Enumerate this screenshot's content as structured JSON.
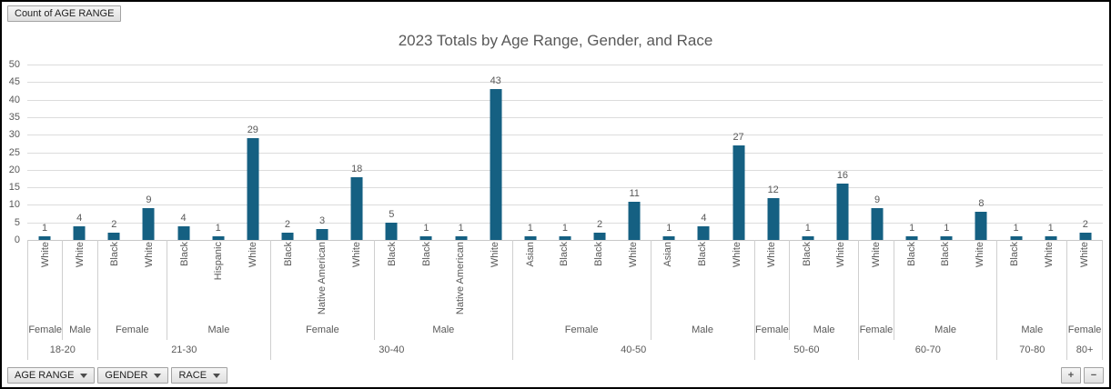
{
  "pivot": {
    "value_button_label": "Count of AGE RANGE",
    "axis_buttons": [
      {
        "label": "AGE RANGE"
      },
      {
        "label": "GENDER"
      },
      {
        "label": "RACE"
      }
    ],
    "expand_label": "+",
    "collapse_label": "−"
  },
  "chart_data": {
    "type": "bar",
    "title": "2023 Totals by Age Range, Gender, and Race",
    "ylabel": "",
    "xlabel": "",
    "ylim": [
      0,
      50
    ],
    "yticks": [
      0,
      5,
      10,
      15,
      20,
      25,
      30,
      35,
      40,
      45,
      50
    ],
    "grid": true,
    "legend": false,
    "bar_color": "#156082",
    "axis_hierarchy": [
      "RACE",
      "GENDER",
      "AGE RANGE"
    ],
    "groups": [
      {
        "age": "18-20",
        "genders": [
          {
            "gender": "Female",
            "bars": [
              {
                "race": "White",
                "value": 1
              }
            ]
          },
          {
            "gender": "Male",
            "bars": [
              {
                "race": "White",
                "value": 4
              }
            ]
          }
        ]
      },
      {
        "age": "21-30",
        "genders": [
          {
            "gender": "Female",
            "bars": [
              {
                "race": "Black",
                "value": 2
              },
              {
                "race": "White",
                "value": 9
              }
            ]
          },
          {
            "gender": "Male",
            "bars": [
              {
                "race": "Black",
                "value": 4
              },
              {
                "race": "Hispanic",
                "value": 1
              },
              {
                "race": "White",
                "value": 29
              }
            ]
          }
        ]
      },
      {
        "age": "30-40",
        "genders": [
          {
            "gender": "Female",
            "bars": [
              {
                "race": "Black",
                "value": 2
              },
              {
                "race": "Native American",
                "value": 3
              },
              {
                "race": "White",
                "value": 18
              }
            ]
          },
          {
            "gender": "Male",
            "bars": [
              {
                "race": "Black",
                "value": 5
              },
              {
                "race": "Black",
                "value": 1
              },
              {
                "race": "Native American",
                "value": 1
              },
              {
                "race": "White",
                "value": 43
              }
            ]
          }
        ]
      },
      {
        "age": "40-50",
        "genders": [
          {
            "gender": "Female",
            "bars": [
              {
                "race": "Asian",
                "value": 1
              },
              {
                "race": "Black",
                "value": 1
              },
              {
                "race": "Black",
                "value": 2
              },
              {
                "race": "White",
                "value": 11
              }
            ]
          },
          {
            "gender": "Male",
            "bars": [
              {
                "race": "Asian",
                "value": 1
              },
              {
                "race": "Black",
                "value": 4
              },
              {
                "race": "White",
                "value": 27
              }
            ]
          }
        ]
      },
      {
        "age": "50-60",
        "genders": [
          {
            "gender": "Female",
            "bars": [
              {
                "race": "White",
                "value": 12
              }
            ]
          },
          {
            "gender": "Male",
            "bars": [
              {
                "race": "Black",
                "value": 1
              },
              {
                "race": "White",
                "value": 16
              }
            ]
          }
        ]
      },
      {
        "age": "60-70",
        "genders": [
          {
            "gender": "Female",
            "bars": [
              {
                "race": "White",
                "value": 9
              }
            ]
          },
          {
            "gender": "Male",
            "bars": [
              {
                "race": "Black",
                "value": 1
              },
              {
                "race": "Black",
                "value": 1
              },
              {
                "race": "White",
                "value": 8
              }
            ]
          }
        ]
      },
      {
        "age": "70-80",
        "genders": [
          {
            "gender": "Male",
            "bars": [
              {
                "race": "Black",
                "value": 1
              },
              {
                "race": "White",
                "value": 1
              }
            ]
          }
        ]
      },
      {
        "age": "80+",
        "genders": [
          {
            "gender": "Female",
            "bars": [
              {
                "race": "White",
                "value": 2
              }
            ]
          }
        ]
      }
    ]
  }
}
